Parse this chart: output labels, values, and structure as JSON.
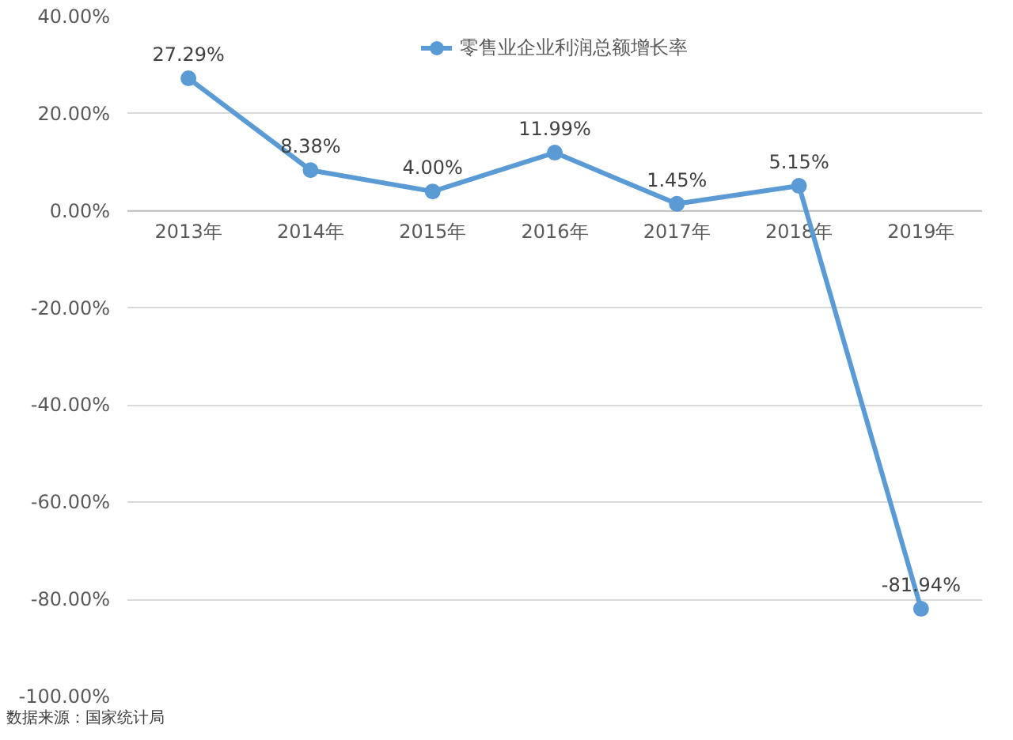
{
  "chart_data": {
    "type": "line",
    "categories": [
      "2013年",
      "2014年",
      "2015年",
      "2016年",
      "2017年",
      "2018年",
      "2019年"
    ],
    "series": [
      {
        "name": "零售业企业利润总额增长率",
        "color": "#5b9bd5",
        "values": [
          27.29,
          8.38,
          4.0,
          11.99,
          1.45,
          5.15,
          -81.94
        ],
        "value_labels": [
          "27.29%",
          "8.38%",
          "4.00%",
          "11.99%",
          "1.45%",
          "5.15%",
          "-81.94%"
        ]
      }
    ],
    "ylim": [
      -100,
      40
    ],
    "yticks": [
      {
        "value": -100,
        "label": "-100.00%"
      },
      {
        "value": -80,
        "label": "-80.00%"
      },
      {
        "value": -60,
        "label": "-60.00%"
      },
      {
        "value": -40,
        "label": "-40.00%"
      },
      {
        "value": -20,
        "label": "-20.00%"
      },
      {
        "value": 0,
        "label": "0.00%"
      },
      {
        "value": 20,
        "label": "20.00%"
      },
      {
        "value": 40,
        "label": "40.00%"
      }
    ],
    "grid": "y",
    "legend": "top",
    "marker": "circle",
    "line_style": "solid",
    "annotations": [
      "数据来源：国家统计局"
    ]
  }
}
